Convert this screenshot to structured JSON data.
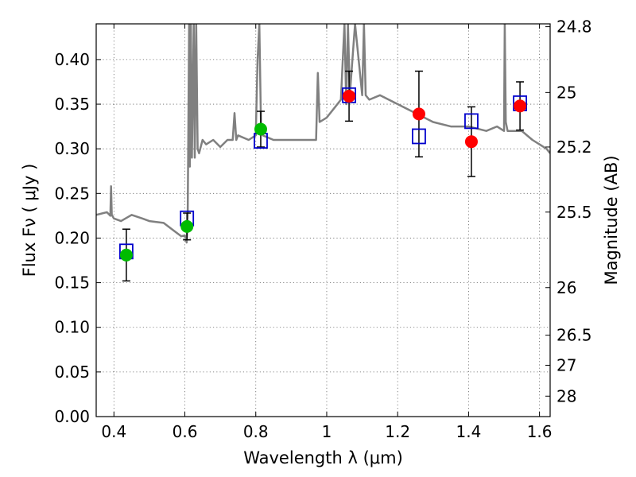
{
  "chart_data": {
    "type": "scatter",
    "xlabel": "Wavelength  λ (μm)",
    "ylabel": "Flux  Fν  ( μJy )",
    "y2label": "Magnitude (AB)",
    "xlim": [
      0.35,
      1.63
    ],
    "ylim": [
      0.0,
      0.44
    ],
    "grid": true,
    "x_ticks": [
      {
        "value": 0.4,
        "label": "0.4"
      },
      {
        "value": 0.6,
        "label": "0.6"
      },
      {
        "value": 0.8,
        "label": "0.8"
      },
      {
        "value": 1.0,
        "label": "1"
      },
      {
        "value": 1.2,
        "label": "1.2"
      },
      {
        "value": 1.4,
        "label": "1.4"
      },
      {
        "value": 1.6,
        "label": "1.6"
      }
    ],
    "y_ticks": [
      {
        "value": 0.0,
        "label": "0.00"
      },
      {
        "value": 0.05,
        "label": "0.05"
      },
      {
        "value": 0.1,
        "label": "0.10"
      },
      {
        "value": 0.15,
        "label": "0.15"
      },
      {
        "value": 0.2,
        "label": "0.20"
      },
      {
        "value": 0.25,
        "label": "0.25"
      },
      {
        "value": 0.3,
        "label": "0.30"
      },
      {
        "value": 0.35,
        "label": "0.35"
      },
      {
        "value": 0.4,
        "label": "0.40"
      }
    ],
    "y2_ticks": [
      {
        "flux": 0.4368,
        "label": "24.8"
      },
      {
        "flux": 0.3631,
        "label": "25"
      },
      {
        "flux": 0.302,
        "label": "25.2"
      },
      {
        "flux": 0.2291,
        "label": "25.5"
      },
      {
        "flux": 0.1445,
        "label": "26"
      },
      {
        "flux": 0.0912,
        "label": "26.5"
      },
      {
        "flux": 0.0575,
        "label": "27"
      },
      {
        "flux": 0.0229,
        "label": "28"
      }
    ],
    "model_spectrum": {
      "name": "model SED",
      "color": "#808080",
      "x": [
        0.35,
        0.38,
        0.39,
        0.392,
        0.394,
        0.4,
        0.42,
        0.45,
        0.48,
        0.5,
        0.54,
        0.57,
        0.59,
        0.6,
        0.605,
        0.608,
        0.612,
        0.614,
        0.617,
        0.62,
        0.625,
        0.628,
        0.632,
        0.636,
        0.64,
        0.65,
        0.66,
        0.68,
        0.7,
        0.72,
        0.735,
        0.74,
        0.745,
        0.75,
        0.78,
        0.8,
        0.805,
        0.81,
        0.815,
        0.82,
        0.85,
        0.88,
        0.9,
        0.94,
        0.97,
        0.975,
        0.98,
        1.0,
        1.02,
        1.04,
        1.05,
        1.055,
        1.06,
        1.065,
        1.08,
        1.1,
        1.105,
        1.11,
        1.12,
        1.15,
        1.2,
        1.25,
        1.3,
        1.35,
        1.4,
        1.45,
        1.48,
        1.5,
        1.502,
        1.505,
        1.51,
        1.55,
        1.58,
        1.6,
        1.62,
        1.63
      ],
      "y": [
        0.226,
        0.229,
        0.225,
        0.258,
        0.226,
        0.222,
        0.219,
        0.226,
        0.222,
        0.219,
        0.217,
        0.208,
        0.202,
        0.203,
        0.195,
        0.225,
        0.44,
        0.28,
        0.44,
        0.29,
        0.44,
        0.29,
        0.44,
        0.3,
        0.295,
        0.31,
        0.305,
        0.31,
        0.302,
        0.31,
        0.31,
        0.34,
        0.31,
        0.315,
        0.31,
        0.315,
        0.4,
        0.44,
        0.32,
        0.315,
        0.31,
        0.31,
        0.31,
        0.31,
        0.31,
        0.385,
        0.33,
        0.335,
        0.345,
        0.355,
        0.44,
        0.35,
        0.44,
        0.36,
        0.44,
        0.36,
        0.44,
        0.36,
        0.355,
        0.36,
        0.35,
        0.34,
        0.33,
        0.325,
        0.325,
        0.32,
        0.325,
        0.32,
        0.44,
        0.33,
        0.32,
        0.32,
        0.31,
        0.305,
        0.3,
        0.295
      ]
    },
    "series": [
      {
        "name": "observed (green)",
        "color": "#00bb00",
        "x": [
          0.435,
          0.606,
          0.814
        ],
        "y": [
          0.181,
          0.213,
          0.322
        ],
        "err": [
          0.029,
          0.015,
          0.02
        ]
      },
      {
        "name": "observed (red)",
        "color": "#ff0000",
        "x": [
          1.063,
          1.26,
          1.408,
          1.545
        ],
        "y": [
          0.359,
          0.339,
          0.308,
          0.348
        ],
        "err": [
          0.028,
          0.048,
          0.039,
          0.027
        ]
      },
      {
        "name": "model photometry",
        "color": "#0000cc",
        "marker": "open-square",
        "x": [
          0.435,
          0.606,
          0.814,
          1.063,
          1.26,
          1.408,
          1.545
        ],
        "y": [
          0.185,
          0.222,
          0.309,
          0.36,
          0.314,
          0.331,
          0.351
        ]
      }
    ]
  }
}
